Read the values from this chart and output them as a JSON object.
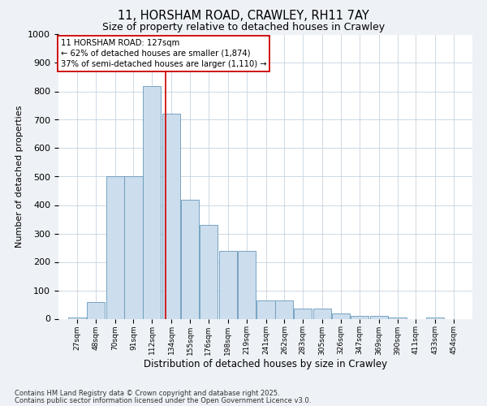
{
  "title1": "11, HORSHAM ROAD, CRAWLEY, RH11 7AY",
  "title2": "Size of property relative to detached houses in Crawley",
  "xlabel": "Distribution of detached houses by size in Crawley",
  "ylabel": "Number of detached properties",
  "bin_labels": [
    "27sqm",
    "48sqm",
    "70sqm",
    "91sqm",
    "112sqm",
    "134sqm",
    "155sqm",
    "176sqm",
    "198sqm",
    "219sqm",
    "241sqm",
    "262sqm",
    "283sqm",
    "305sqm",
    "326sqm",
    "347sqm",
    "369sqm",
    "390sqm",
    "411sqm",
    "433sqm",
    "454sqm"
  ],
  "bin_centers": [
    27,
    48,
    70,
    91,
    112,
    134,
    155,
    176,
    198,
    219,
    241,
    262,
    283,
    305,
    326,
    347,
    369,
    390,
    411,
    433,
    454
  ],
  "bar_heights": [
    5,
    60,
    500,
    500,
    820,
    720,
    420,
    330,
    240,
    240,
    65,
    65,
    35,
    35,
    20,
    10,
    10,
    5,
    0,
    5,
    0
  ],
  "bar_color": "#ccdded",
  "bar_edge_color": "#6699bb",
  "red_line_x": 127,
  "ann_line1": "11 HORSHAM ROAD: 127sqm",
  "ann_line2": "← 62% of detached houses are smaller (1,874)",
  "ann_line3": "37% of semi-detached houses are larger (1,110) →",
  "annotation_box_color": "#cc0000",
  "ylim": [
    0,
    1000
  ],
  "yticks": [
    0,
    100,
    200,
    300,
    400,
    500,
    600,
    700,
    800,
    900,
    1000
  ],
  "footnote1": "Contains HM Land Registry data © Crown copyright and database right 2025.",
  "footnote2": "Contains public sector information licensed under the Open Government Licence v3.0.",
  "background_color": "#eef2f6",
  "plot_bg_color": "#ffffff",
  "grid_color": "#c5d3df",
  "title1_fontsize": 10.5,
  "title2_fontsize": 9,
  "ylabel_fontsize": 8,
  "xlabel_fontsize": 8.5,
  "ytick_fontsize": 8,
  "xtick_fontsize": 6.5,
  "footnote_fontsize": 6
}
